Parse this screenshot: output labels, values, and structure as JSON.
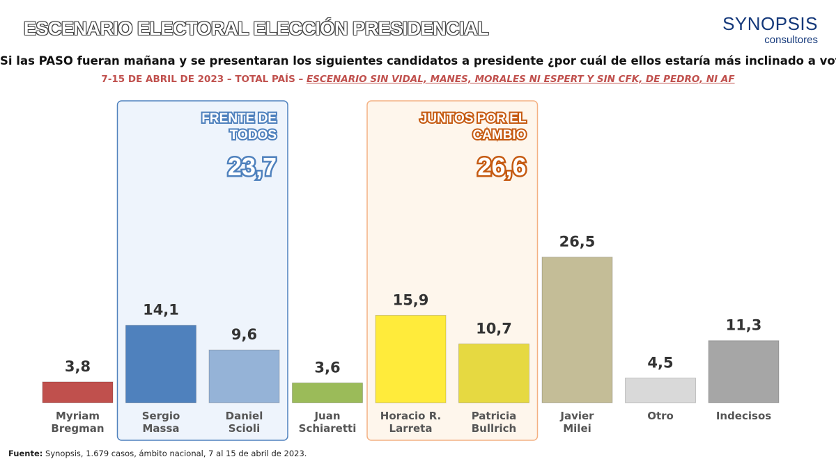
{
  "header": {
    "title": "ESCENARIO ELECTORAL ELECCIÓN PRESIDENCIAL",
    "logo_main": "SYNOPSIS",
    "logo_sub": "consultores",
    "question": "Si las PASO fueran mañana y se presentaran los siguientes candidatos a presidente ¿por cuál de ellos estaría más inclinado a votar?",
    "subtitle_date": "7-15 DE ABRIL DE 2023 – TOTAL PAÍS – ",
    "subtitle_scenario": "ESCENARIO SIN VIDAL, MANES, MORALES NI ESPERT Y SIN CFK, DE PEDRO, NI AF"
  },
  "footer": {
    "source_label": "Fuente:",
    "source_text": " Synopsis, 1.679 casos, ámbito nacional, 7 al 15 de abril de 2023."
  },
  "chart_data": {
    "type": "bar",
    "categories": [
      [
        "Myriam",
        "Bregman"
      ],
      [
        "Sergio",
        "Massa"
      ],
      [
        "Daniel",
        "Scioli"
      ],
      [
        "Juan",
        "Schiaretti"
      ],
      [
        "Horacio R.",
        "Larreta"
      ],
      [
        "Patricia",
        "Bullrich"
      ],
      [
        "Javier",
        "Milei"
      ],
      [
        "Otro"
      ],
      [
        "Indecisos"
      ]
    ],
    "values": [
      3.8,
      14.1,
      9.6,
      3.6,
      15.9,
      10.7,
      26.5,
      4.5,
      11.3
    ],
    "value_labels": [
      "3,8",
      "14,1",
      "9,6",
      "3,6",
      "15,9",
      "10,7",
      "26,5",
      "4,5",
      "11,3"
    ],
    "colors": [
      "#c0504d",
      "#4f81bd",
      "#95b3d7",
      "#9bbb59",
      "#ffeb3b",
      "#e6d941",
      "#c4bd97",
      "#d9d9d9",
      "#a6a6a6"
    ],
    "groups": [
      {
        "label_lines": [
          "FRENTE DE",
          "TODOS"
        ],
        "value": "23,7",
        "members": [
          1,
          2
        ],
        "color": "#4f81bd",
        "bg": "#eef4fc",
        "border": "#4f81bd"
      },
      {
        "label_lines": [
          "JUNTOS POR EL",
          "CAMBIO"
        ],
        "value": "26,6",
        "members": [
          4,
          5
        ],
        "color": "#c55a11",
        "bg": "#fef6ec",
        "border": "#f4b183"
      }
    ],
    "ylim": [
      0,
      30
    ],
    "grid": false,
    "legend": "none"
  }
}
